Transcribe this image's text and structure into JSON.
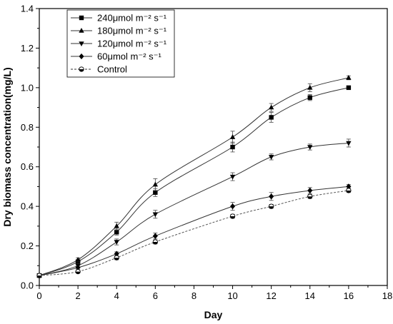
{
  "chart_data": {
    "type": "line",
    "title": "",
    "xlabel": "Day",
    "ylabel": "Dry biomass concentration(mg/L)",
    "xlim": [
      0,
      18
    ],
    "ylim": [
      0,
      1.4
    ],
    "x_ticks": [
      "0",
      "2",
      "4",
      "6",
      "8",
      "10",
      "12",
      "14",
      "16",
      "18"
    ],
    "y_ticks": [
      "0.0",
      "0.2",
      "0.4",
      "0.6",
      "0.8",
      "1.0",
      "1.2",
      "1.4"
    ],
    "grid": false,
    "legend_position": "top-left",
    "x": [
      0,
      2,
      4,
      6,
      10,
      12,
      14,
      16
    ],
    "series": [
      {
        "name": "240μmol m⁻² s⁻¹",
        "marker": "square",
        "line": "solid",
        "values": [
          0.05,
          0.12,
          0.27,
          0.47,
          0.7,
          0.85,
          0.95,
          1.0
        ],
        "errors": [
          0.005,
          0.01,
          0.015,
          0.02,
          0.025,
          0.025,
          0.015,
          0.008
        ]
      },
      {
        "name": "180μmol m⁻² s⁻¹",
        "marker": "triangle-up",
        "line": "solid",
        "values": [
          0.05,
          0.13,
          0.3,
          0.51,
          0.75,
          0.9,
          1.0,
          1.05
        ],
        "errors": [
          0.005,
          0.01,
          0.02,
          0.03,
          0.03,
          0.02,
          0.02,
          0.01
        ]
      },
      {
        "name": "120μmol m⁻² s⁻¹",
        "marker": "triangle-down",
        "line": "solid",
        "values": [
          0.05,
          0.1,
          0.22,
          0.36,
          0.55,
          0.65,
          0.7,
          0.72
        ],
        "errors": [
          0.005,
          0.01,
          0.015,
          0.02,
          0.02,
          0.015,
          0.015,
          0.02
        ]
      },
      {
        "name": "60μmol m⁻² s⁻¹",
        "marker": "diamond",
        "line": "solid",
        "values": [
          0.05,
          0.09,
          0.16,
          0.25,
          0.4,
          0.45,
          0.48,
          0.5
        ],
        "errors": [
          0.005,
          0.01,
          0.01,
          0.015,
          0.02,
          0.02,
          0.015,
          0.01
        ]
      },
      {
        "name": "Control",
        "marker": "half-circle",
        "line": "dashed",
        "values": [
          0.05,
          0.07,
          0.14,
          0.22,
          0.35,
          0.4,
          0.45,
          0.48
        ],
        "errors": [
          0.005,
          0.008,
          0.01,
          0.01,
          0.01,
          0.01,
          0.01,
          0.01
        ]
      }
    ]
  }
}
